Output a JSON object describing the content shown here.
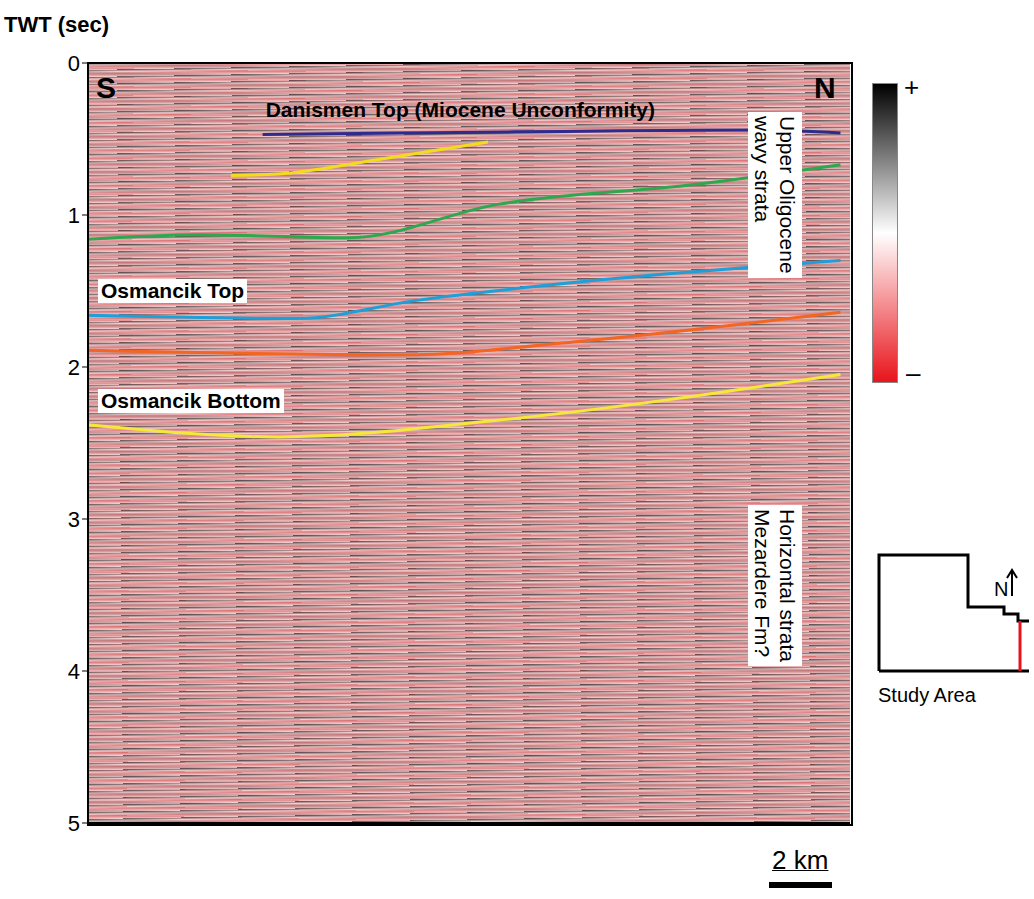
{
  "chart_data": {
    "type": "line",
    "y_label": "TWT (sec)",
    "ylim": [
      0,
      5
    ],
    "yticks": [
      0,
      1,
      2,
      3,
      4,
      5
    ],
    "xlim": [
      0,
      24
    ],
    "tick_labels": "y",
    "grid": false,
    "scale_bar": {
      "value": 2,
      "label": "2 km"
    },
    "ends": {
      "left": "S",
      "right": "N"
    },
    "series": [
      {
        "name": "Danismen Top (Miocene Unconformity)",
        "color": "#2e2b8f",
        "x": [
          5.5,
          10,
          15,
          21,
          23.7
        ],
        "values": [
          0.47,
          0.46,
          0.45,
          0.44,
          0.46
        ]
      },
      {
        "color": "#f2dc1c",
        "x": [
          4.5,
          6,
          9,
          12.6
        ],
        "values": [
          0.74,
          0.73,
          0.64,
          0.52
        ]
      },
      {
        "color": "#2ea84f",
        "x": [
          0,
          3.5,
          8.2,
          12.9,
          19.1,
          23.7
        ],
        "values": [
          1.16,
          1.13,
          1.15,
          0.93,
          0.8,
          0.67
        ]
      },
      {
        "name": "Osmancik Top",
        "color": "#1e9fd8",
        "x": [
          0,
          6.6,
          10.4,
          16,
          23.7
        ],
        "values": [
          1.66,
          1.68,
          1.56,
          1.43,
          1.3
        ]
      },
      {
        "color": "#f26522",
        "x": [
          0,
          9.8,
          16,
          23.7
        ],
        "values": [
          1.89,
          1.92,
          1.82,
          1.64
        ]
      },
      {
        "name": "Osmancik Bottom",
        "color": "#f5e83a",
        "x": [
          0,
          6,
          12.9,
          23.7
        ],
        "values": [
          2.38,
          2.46,
          2.35,
          2.05
        ]
      }
    ],
    "strata_labels": [
      [
        "Upper Oligocene",
        "wavy strata"
      ],
      [
        "Horizontal strata",
        "Mezardere Fm?"
      ]
    ],
    "colorbar": {
      "labels": [
        "+",
        "–"
      ],
      "colors": [
        "#000000",
        "#ffffff",
        "#e8141b"
      ]
    },
    "inset": {
      "title": "Study Area",
      "north": "N"
    }
  }
}
